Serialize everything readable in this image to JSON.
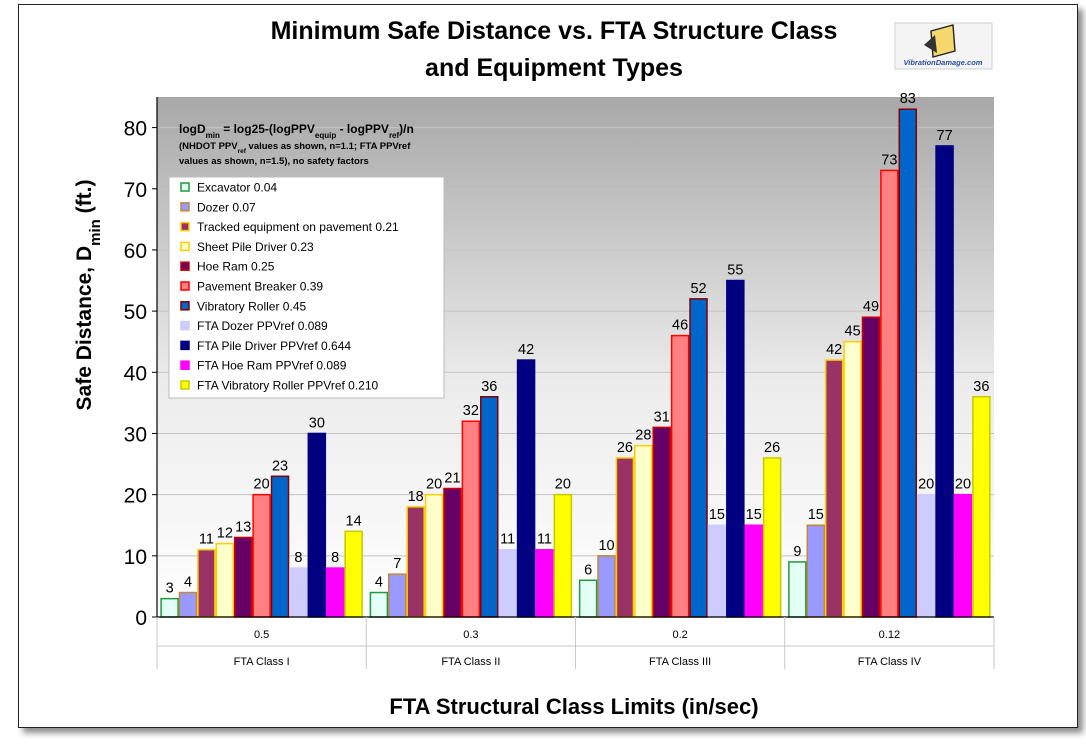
{
  "chart_data": {
    "type": "bar",
    "title_line1": "Minimum Safe Distance vs. FTA Structure Class",
    "title_line2": "and Equipment Types",
    "ylabel_main": "Safe Distance, D",
    "ylabel_sub": "min",
    "ylabel_unit": " (ft.)",
    "xlabel": "FTA Structural Class Limits (in/sec)",
    "ylim": [
      0,
      85
    ],
    "yticks": [
      0,
      10,
      20,
      30,
      40,
      50,
      60,
      70,
      80
    ],
    "categories": [
      {
        "limit": "0.5",
        "class": "FTA Class I"
      },
      {
        "limit": "0.3",
        "class": "FTA Class II"
      },
      {
        "limit": "0.2",
        "class": "FTA Class III"
      },
      {
        "limit": "0.12",
        "class": "FTA Class IV"
      }
    ],
    "formula": {
      "line1_a": "logD",
      "line1_a_sub": "min",
      "line1_b": " = log25-(logPPV",
      "line1_b_sub": "equip",
      "line1_c": " - logPPV",
      "line1_c_sub": "ref",
      "line1_d": ")/n",
      "line2_a": "(NHDOT PPV",
      "line2_a_sub": "ref",
      "line2_b": " values as shown, n=1.1; FTA PPVref",
      "line3": "values as shown, n=1.5), no safety factors"
    },
    "legend_placement": "upper-left inside plot",
    "series": [
      {
        "name": "Excavator 0.04",
        "fill": "#e4fff6",
        "stroke": "#1e9a3c",
        "values": [
          3,
          4,
          6,
          9
        ]
      },
      {
        "name": "Dozer 0.07",
        "fill": "#9999ff",
        "stroke": "#c08a3c",
        "values": [
          4,
          7,
          10,
          15
        ]
      },
      {
        "name": "Tracked equipment on pavement 0.21",
        "fill": "#993366",
        "stroke": "#ffcc00",
        "values": [
          11,
          18,
          26,
          42
        ]
      },
      {
        "name": "Sheet Pile Driver 0.23",
        "fill": "#ffffcc",
        "stroke": "#ffcc00",
        "values": [
          12,
          20,
          28,
          45
        ]
      },
      {
        "name": "Hoe Ram 0.25",
        "fill": "#660066",
        "stroke": "#cc0000",
        "values": [
          13,
          21,
          31,
          49
        ]
      },
      {
        "name": "Pavement Breaker 0.39",
        "fill": "#ff8080",
        "stroke": "#ff0000",
        "values": [
          20,
          32,
          46,
          73
        ]
      },
      {
        "name": "Vibratory Roller 0.45",
        "fill": "#0066cc",
        "stroke": "#800000",
        "values": [
          23,
          36,
          52,
          83
        ]
      },
      {
        "name": "FTA Dozer PPVref 0.089",
        "fill": "#ccccff",
        "stroke": "#ccccff",
        "values": [
          8,
          11,
          15,
          20
        ]
      },
      {
        "name": "FTA Pile Driver PPVref 0.644",
        "fill": "#000080",
        "stroke": "#000080",
        "values": [
          30,
          42,
          55,
          77
        ]
      },
      {
        "name": "FTA Hoe Ram PPVref 0.089",
        "fill": "#ff00ff",
        "stroke": "#ff00ff",
        "values": [
          8,
          11,
          15,
          20
        ]
      },
      {
        "name": "FTA Vibratory Roller PPVref 0.210",
        "fill": "#ffff00",
        "stroke": "#c8c800",
        "values": [
          14,
          20,
          26,
          36
        ]
      }
    ],
    "data_labels": [
      [
        "3",
        "4",
        "11",
        "12",
        "13",
        "20",
        "23",
        "8",
        "30",
        "8",
        "14"
      ],
      [
        "4",
        "7",
        "18",
        "20",
        "21",
        "32",
        "36",
        "11",
        "42",
        "11",
        "20"
      ],
      [
        "6",
        "10",
        "26",
        "28",
        "31",
        "46",
        "52",
        "15",
        "55",
        "15",
        "26"
      ],
      [
        "9",
        "15",
        "42",
        "45",
        "49",
        "73",
        "83",
        "20",
        "77",
        "20",
        "36"
      ]
    ],
    "logo_text": "VibrationDamage.com"
  }
}
